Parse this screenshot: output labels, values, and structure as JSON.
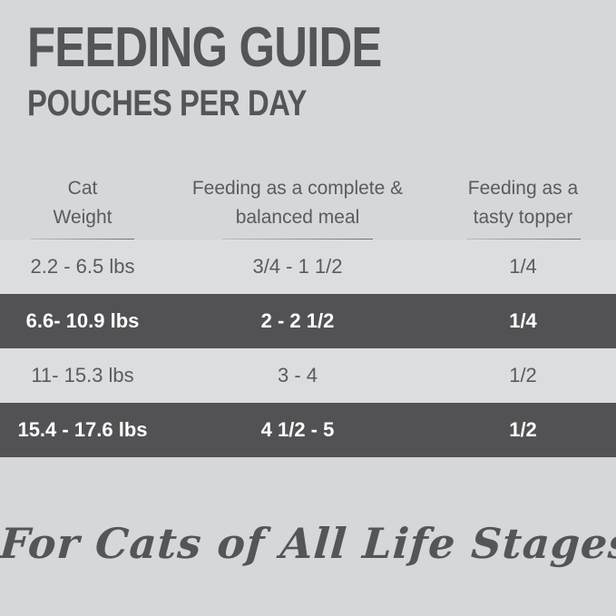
{
  "header": {
    "title": "FEEDING GUIDE",
    "subtitle": "POUCHES PER DAY"
  },
  "table": {
    "columns": [
      {
        "line1": "Cat",
        "line2": "Weight"
      },
      {
        "line1": "Feeding as a complete &",
        "line2": "balanced meal"
      },
      {
        "line1": "Feeding as a",
        "line2": "tasty topper"
      }
    ],
    "rows": [
      {
        "weight": "2.2 - 6.5 lbs",
        "meal": "3/4 - 1 1/2",
        "topper": "1/4",
        "variant": "light"
      },
      {
        "weight": "6.6- 10.9 lbs",
        "meal": "2 - 2 1/2",
        "topper": "1/4",
        "variant": "dark"
      },
      {
        "weight": "11- 15.3 lbs",
        "meal": "3 - 4",
        "topper": "1/2",
        "variant": "light"
      },
      {
        "weight": "15.4 - 17.6 lbs",
        "meal": "4 1/2 - 5",
        "topper": "1/2",
        "variant": "dark"
      }
    ]
  },
  "footer": {
    "tagline": "For Cats of All Life Stages"
  },
  "colors": {
    "background": "#d6d7d8",
    "light_row": "#dcddde",
    "dark_row": "#525254",
    "text_dark": "#545559",
    "text_on_dark": "#ffffff",
    "underline": "#8a8b8e"
  }
}
